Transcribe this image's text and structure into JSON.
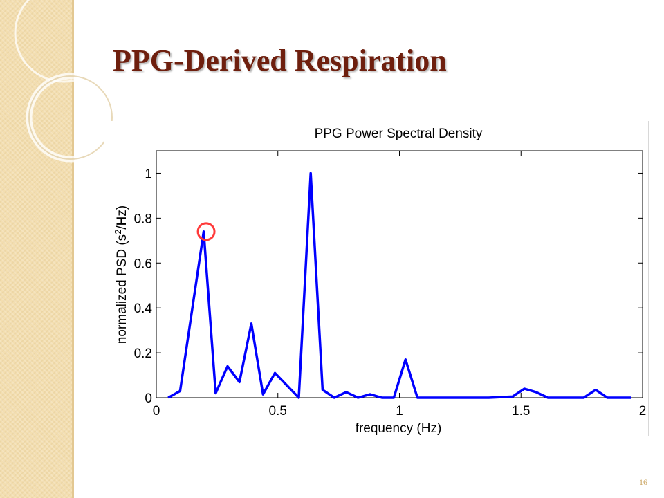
{
  "slide": {
    "title": "PPG-Derived Respiration",
    "page_number": "16",
    "accent_color": "#6e1f0e",
    "strip_color": "#f3deb0"
  },
  "chart_data": {
    "type": "line",
    "title": "PPG Power Spectral Density",
    "xlabel": "frequency (Hz)",
    "ylabel_parts": [
      "normalized PSD (s",
      "2",
      "/Hz)"
    ],
    "xlim": [
      0,
      2
    ],
    "ylim": [
      0,
      1.1
    ],
    "xticks": [
      0,
      0.5,
      1,
      1.5,
      2
    ],
    "xtick_labels": [
      "0",
      "0.5",
      "1",
      "1.5",
      "2"
    ],
    "yticks": [
      0,
      0.2,
      0.4,
      0.6,
      0.8,
      1
    ],
    "ytick_labels": [
      "0",
      "0.2",
      "0.4",
      "0.6",
      "0.8",
      "1"
    ],
    "grid": false,
    "series": [
      {
        "color": "#0000ff",
        "x": [
          0.049,
          0.098,
          0.195,
          0.244,
          0.293,
          0.342,
          0.391,
          0.439,
          0.488,
          0.586,
          0.635,
          0.684,
          0.732,
          0.781,
          0.83,
          0.879,
          0.928,
          0.977,
          1.025,
          1.074,
          1.172,
          1.27,
          1.367,
          1.465,
          1.514,
          1.562,
          1.611,
          1.66,
          1.709,
          1.758,
          1.807,
          1.855,
          1.904,
          1.953
        ],
        "y": [
          0.0,
          0.03,
          0.74,
          0.02,
          0.14,
          0.07,
          0.33,
          0.015,
          0.11,
          0.0,
          1.0,
          0.035,
          0.0,
          0.025,
          0.0,
          0.015,
          0.0,
          0.0,
          0.17,
          0.0,
          0.0,
          0.0,
          0.0,
          0.005,
          0.04,
          0.025,
          0.0,
          0.0,
          0.0,
          0.0,
          0.035,
          0.0,
          0.0,
          0.0
        ]
      }
    ],
    "annotations": [
      {
        "type": "circle",
        "x": 0.205,
        "y": 0.74,
        "color": "#ff3a3a"
      }
    ]
  }
}
